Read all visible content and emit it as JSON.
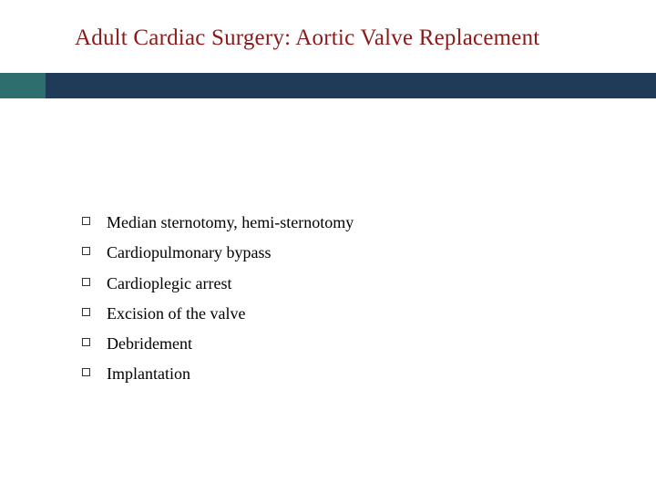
{
  "slide": {
    "title": "Adult Cardiac Surgery: Aortic Valve Replacement",
    "title_color": "#8b1a1a",
    "title_fontsize": 25,
    "bar_color": "#1f3b57",
    "bar_accent_color": "#2f6e6e",
    "background_color": "#ffffff",
    "bullet_style": "hollow-square",
    "bullet_border_color": "#333333",
    "item_fontsize": 18,
    "item_color": "#000000",
    "items": [
      {
        "text": "Median sternotomy, hemi-sternotomy"
      },
      {
        "text": "Cardiopulmonary bypass"
      },
      {
        "text": "Cardioplegic arrest"
      },
      {
        "text": "Excision of the valve"
      },
      {
        "text": "Debridement"
      },
      {
        "text": "Implantation"
      }
    ]
  }
}
